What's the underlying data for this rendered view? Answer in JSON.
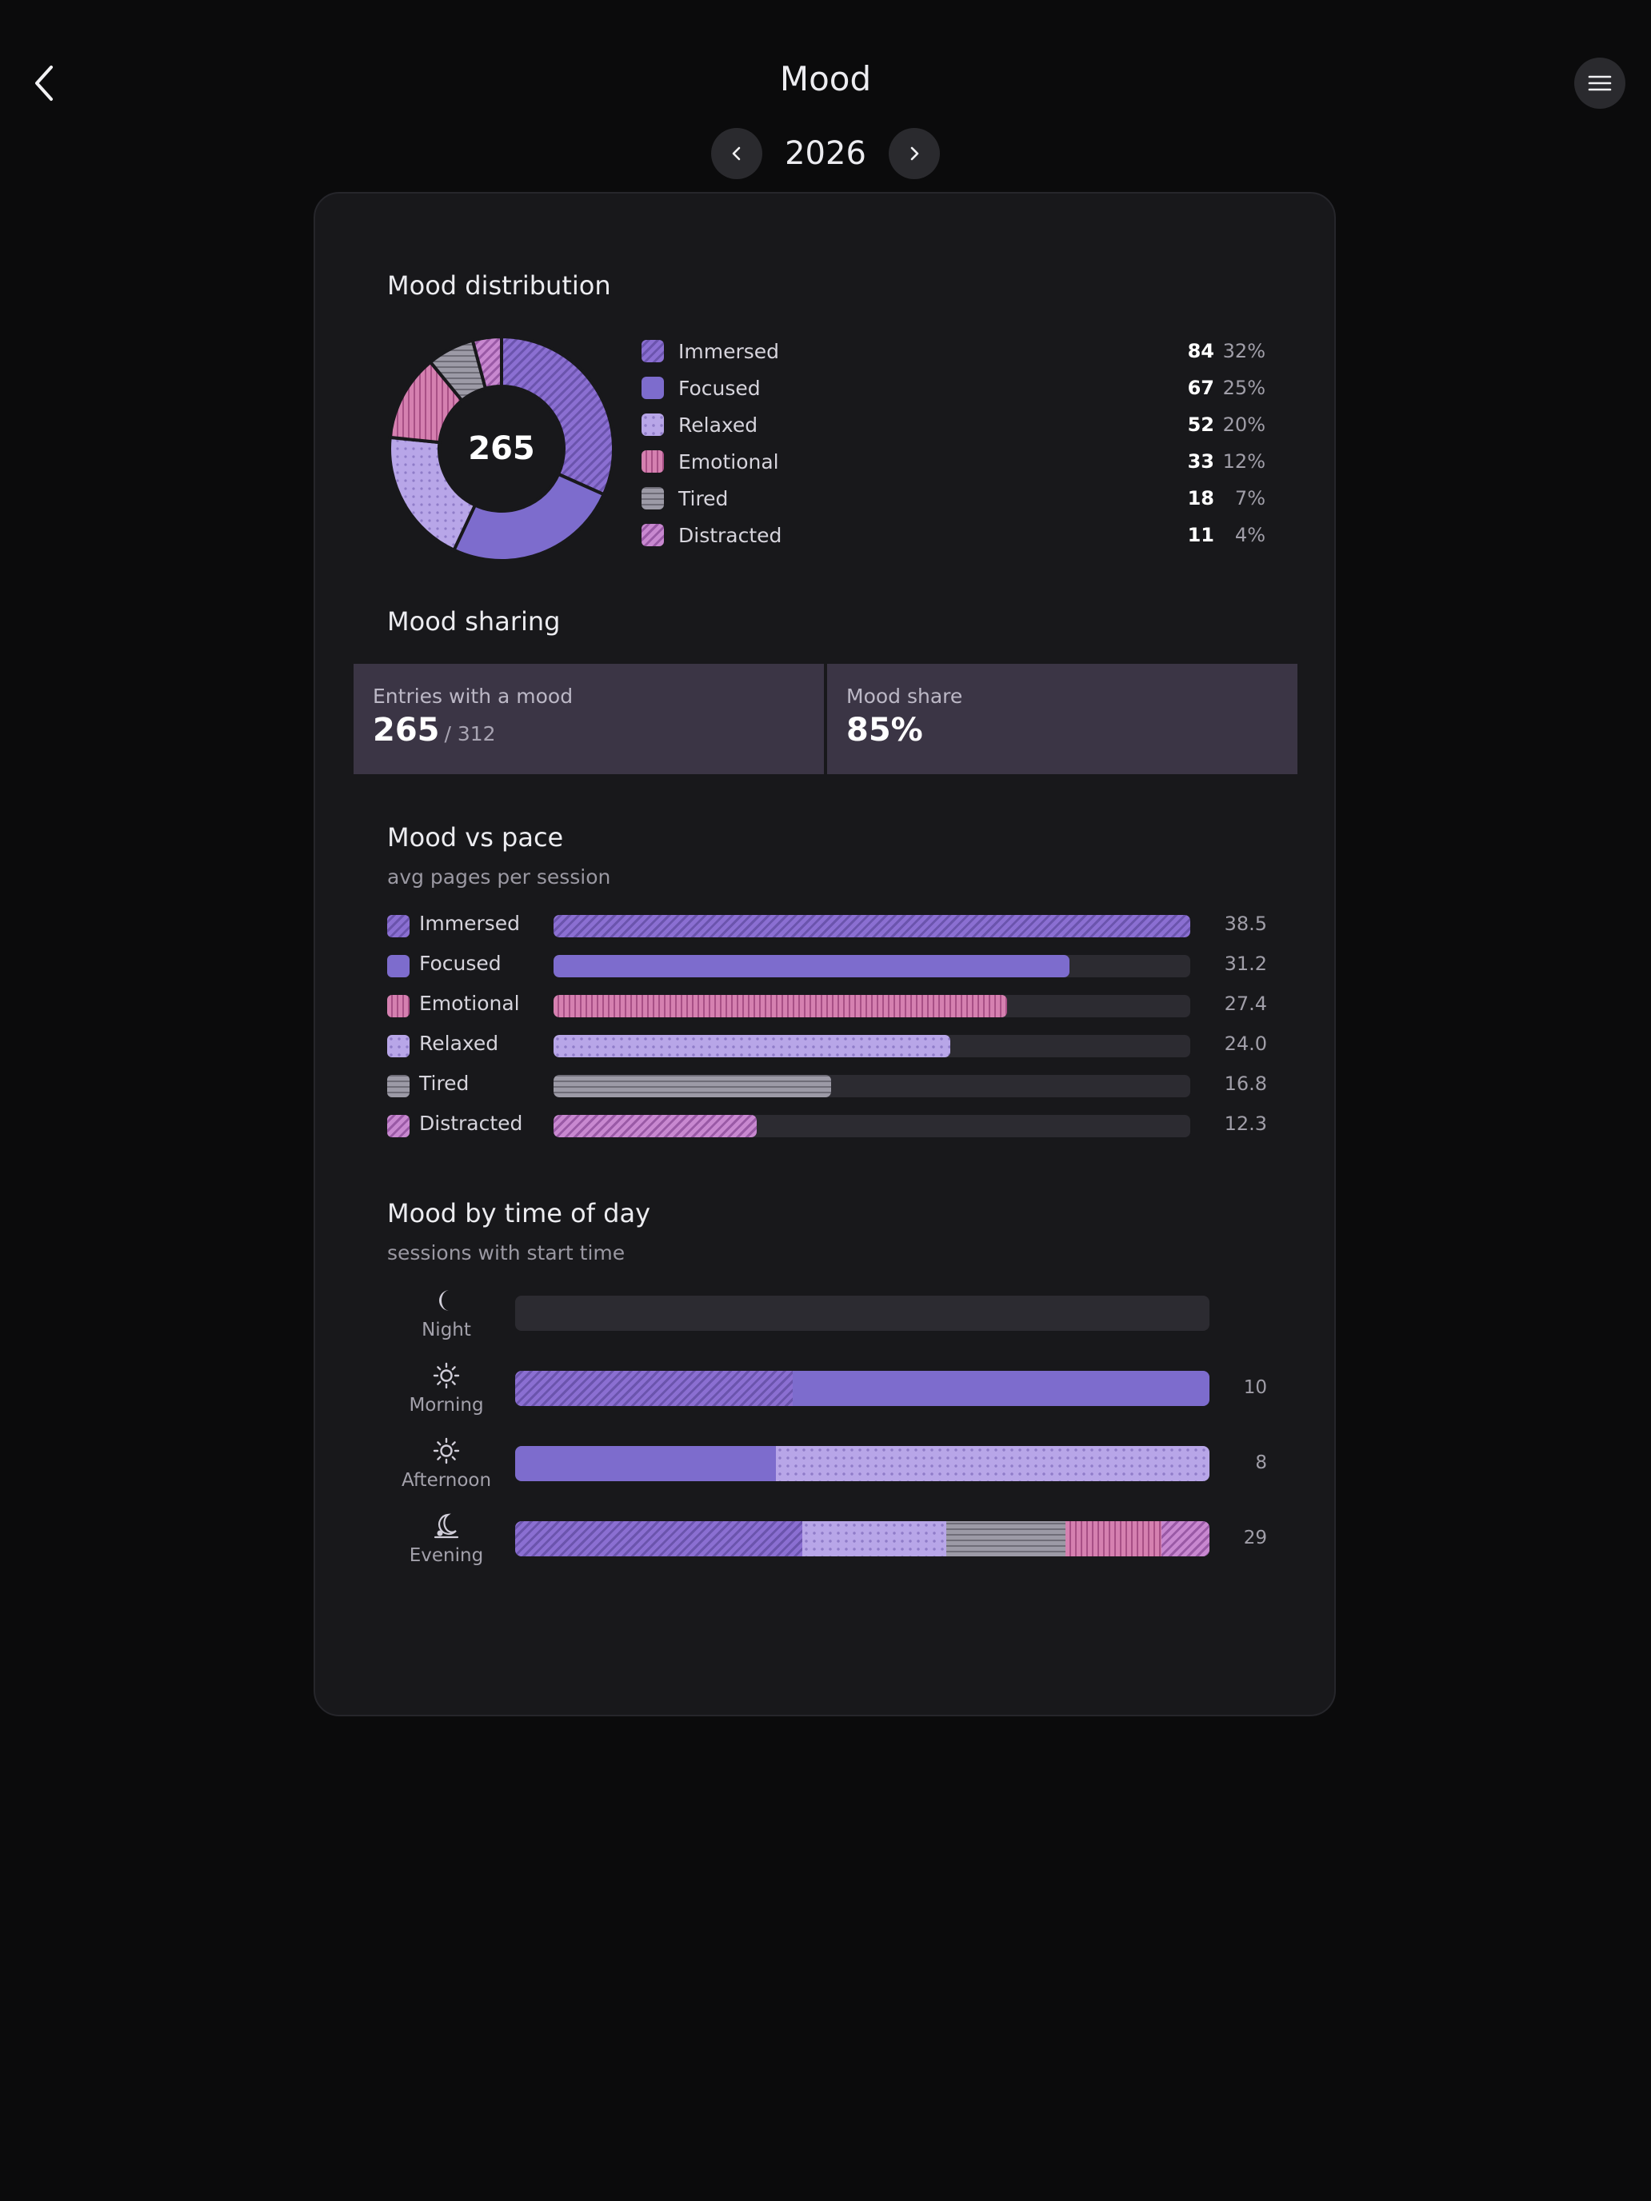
{
  "header": {
    "title": "Mood"
  },
  "year_nav": {
    "year": "2026"
  },
  "distribution": {
    "title": "Mood distribution",
    "total": "265",
    "items": [
      {
        "name": "Immersed",
        "count": "84",
        "pct": "32%"
      },
      {
        "name": "Focused",
        "count": "67",
        "pct": "25%"
      },
      {
        "name": "Relaxed",
        "count": "52",
        "pct": "20%"
      },
      {
        "name": "Emotional",
        "count": "33",
        "pct": "12%"
      },
      {
        "name": "Tired",
        "count": "18",
        "pct": "7%"
      },
      {
        "name": "Distracted",
        "count": "11",
        "pct": "4%"
      }
    ]
  },
  "sharing": {
    "title": "Mood sharing",
    "entries_label": "Entries with a mood",
    "entries_value": "265",
    "entries_total": "/ 312",
    "share_label": "Mood share",
    "share_value": "85%"
  },
  "pace": {
    "title": "Mood vs pace",
    "subtitle": "avg pages per session",
    "rows": [
      {
        "name": "Immersed",
        "value": "38.5"
      },
      {
        "name": "Focused",
        "value": "31.2"
      },
      {
        "name": "Emotional",
        "value": "27.4"
      },
      {
        "name": "Relaxed",
        "value": "24.0"
      },
      {
        "name": "Tired",
        "value": "16.8"
      },
      {
        "name": "Distracted",
        "value": "12.3"
      }
    ]
  },
  "time_of_day": {
    "title": "Mood by time of day",
    "subtitle": "sessions with start time",
    "rows": [
      {
        "label": "Night",
        "icon": "moon-icon",
        "count": ""
      },
      {
        "label": "Morning",
        "icon": "sun-icon",
        "count": "10"
      },
      {
        "label": "Afternoon",
        "icon": "sun-icon",
        "count": "8"
      },
      {
        "label": "Evening",
        "icon": "moon-set-icon",
        "count": "29"
      }
    ]
  },
  "colors": {
    "Immersed": "#8b6fd2",
    "Focused": "#7d6ccd",
    "Relaxed": "#b8a6e8",
    "Emotional": "#d580b0",
    "Tired": "#9c9aa6",
    "Distracted": "#c888d0"
  },
  "chart_data": [
    {
      "type": "pie",
      "title": "Mood distribution",
      "categories": [
        "Immersed",
        "Focused",
        "Relaxed",
        "Emotional",
        "Tired",
        "Distracted"
      ],
      "values": [
        84,
        67,
        52,
        33,
        18,
        11
      ],
      "center_label": "265"
    },
    {
      "type": "bar",
      "title": "Mood vs pace",
      "subtitle": "avg pages per session",
      "categories": [
        "Immersed",
        "Focused",
        "Emotional",
        "Relaxed",
        "Tired",
        "Distracted"
      ],
      "values": [
        38.5,
        31.2,
        27.4,
        24.0,
        16.8,
        12.3
      ],
      "xlim": [
        0,
        38.5
      ]
    },
    {
      "type": "bar",
      "stacked": true,
      "title": "Mood by time of day",
      "subtitle": "sessions with start time",
      "categories": [
        "Night",
        "Morning",
        "Afternoon",
        "Evening"
      ],
      "totals": [
        0,
        10,
        8,
        29
      ],
      "series": [
        {
          "name": "Immersed",
          "values": [
            0,
            4,
            0,
            12
          ]
        },
        {
          "name": "Focused",
          "values": [
            0,
            6,
            3,
            0
          ]
        },
        {
          "name": "Relaxed",
          "values": [
            0,
            0,
            5,
            6
          ]
        },
        {
          "name": "Tired",
          "values": [
            0,
            0,
            0,
            5
          ]
        },
        {
          "name": "Emotional",
          "values": [
            0,
            0,
            0,
            4
          ]
        },
        {
          "name": "Distracted",
          "values": [
            0,
            0,
            0,
            2
          ]
        }
      ]
    }
  ]
}
